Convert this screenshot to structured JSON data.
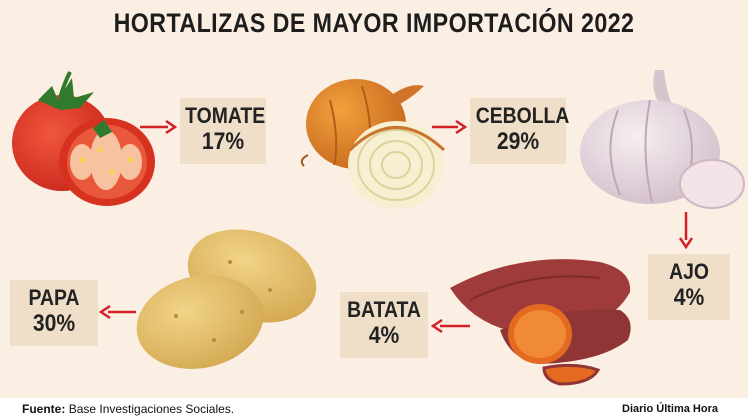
{
  "chart_data": {
    "type": "infographic",
    "title": "HORTALIZAS DE MAYOR IMPORTACIÓN 2022",
    "categories": [
      "TOMATE",
      "CEBOLLA",
      "AJO",
      "BATATA",
      "PAPA"
    ],
    "values": [
      17,
      29,
      4,
      4,
      30
    ],
    "value_labels": [
      "17%",
      "29%",
      "4%",
      "4%",
      "30%"
    ],
    "unit": "%"
  },
  "footer": {
    "source_label": "Fuente:",
    "source_text": "Base Investigaciones Sociales.",
    "brand": "Diario Última Hora"
  },
  "colors": {
    "background": "#fbeee3",
    "label_box": "#efdfc9",
    "arrow": "#d42027"
  },
  "icons": [
    "tomato-icon",
    "onion-icon",
    "garlic-icon",
    "sweet-potato-icon",
    "potato-icon"
  ]
}
